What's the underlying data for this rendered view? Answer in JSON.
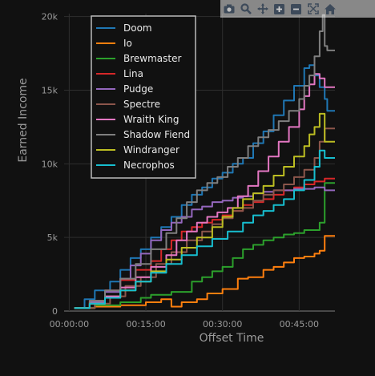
{
  "modebar": {
    "icons": [
      "camera-icon",
      "zoom-icon",
      "pan-icon",
      "zoom-in-icon",
      "zoom-out-icon",
      "autoscale-icon",
      "home-icon"
    ]
  },
  "chart_data": {
    "type": "line",
    "xlabel": "Offset Time",
    "ylabel": "Earned Income",
    "x_ticks": [
      "00:00:00",
      "00:15:00",
      "00:30:00",
      "00:45:00"
    ],
    "x_tick_minutes": [
      0,
      15,
      30,
      45
    ],
    "xlim_minutes": [
      -1,
      52
    ],
    "y_ticks": [
      "0",
      "5k",
      "10k",
      "15k",
      "20k"
    ],
    "y_tick_values": [
      0,
      5000,
      10000,
      15000,
      20000
    ],
    "ylim": [
      0,
      20200
    ],
    "grid": true,
    "legend_position": "top-left",
    "series": [
      {
        "name": "Doom",
        "color": "#1f77b4",
        "points": [
          [
            1,
            200
          ],
          [
            3,
            800
          ],
          [
            5,
            1400
          ],
          [
            8,
            2000
          ],
          [
            10,
            2800
          ],
          [
            12,
            3600
          ],
          [
            14,
            4200
          ],
          [
            16,
            5000
          ],
          [
            18,
            5700
          ],
          [
            20,
            6400
          ],
          [
            22,
            7200
          ],
          [
            24,
            7900
          ],
          [
            26,
            8400
          ],
          [
            28,
            9000
          ],
          [
            30,
            9400
          ],
          [
            32,
            10000
          ],
          [
            34,
            10400
          ],
          [
            36,
            11400
          ],
          [
            38,
            12200
          ],
          [
            40,
            13300
          ],
          [
            42,
            14300
          ],
          [
            44,
            15300
          ],
          [
            46,
            16500
          ],
          [
            47,
            16700
          ],
          [
            48,
            16000
          ],
          [
            49,
            15200
          ],
          [
            50,
            14400
          ],
          [
            50.5,
            13600
          ],
          [
            52,
            13600
          ]
        ]
      },
      {
        "name": "Io",
        "color": "#ff7f0e",
        "points": [
          [
            1,
            200
          ],
          [
            5,
            300
          ],
          [
            10,
            400
          ],
          [
            15,
            600
          ],
          [
            18,
            800
          ],
          [
            20,
            300
          ],
          [
            22,
            600
          ],
          [
            25,
            800
          ],
          [
            27,
            1200
          ],
          [
            30,
            1500
          ],
          [
            33,
            2200
          ],
          [
            35,
            2300
          ],
          [
            38,
            2800
          ],
          [
            40,
            3000
          ],
          [
            42,
            3300
          ],
          [
            44,
            3600
          ],
          [
            46,
            3700
          ],
          [
            48,
            3900
          ],
          [
            49,
            4100
          ],
          [
            50,
            5100
          ],
          [
            52,
            5100
          ]
        ]
      },
      {
        "name": "Brewmaster",
        "color": "#2ca02c",
        "points": [
          [
            1,
            200
          ],
          [
            5,
            400
          ],
          [
            10,
            600
          ],
          [
            14,
            900
          ],
          [
            16,
            1100
          ],
          [
            20,
            1300
          ],
          [
            24,
            2000
          ],
          [
            26,
            2300
          ],
          [
            28,
            2700
          ],
          [
            30,
            3000
          ],
          [
            32,
            3600
          ],
          [
            34,
            4200
          ],
          [
            36,
            4500
          ],
          [
            38,
            4800
          ],
          [
            40,
            5000
          ],
          [
            42,
            5200
          ],
          [
            44,
            5300
          ],
          [
            46,
            5500
          ],
          [
            48,
            5500
          ],
          [
            49,
            6000
          ],
          [
            50,
            8700
          ],
          [
            52,
            8700
          ]
        ]
      },
      {
        "name": "Lina",
        "color": "#d62728",
        "points": [
          [
            1,
            200
          ],
          [
            4,
            700
          ],
          [
            7,
            1400
          ],
          [
            10,
            2100
          ],
          [
            13,
            2800
          ],
          [
            16,
            3400
          ],
          [
            18,
            4200
          ],
          [
            20,
            4800
          ],
          [
            22,
            5400
          ],
          [
            24,
            5700
          ],
          [
            26,
            6000
          ],
          [
            28,
            6200
          ],
          [
            30,
            6500
          ],
          [
            32,
            6800
          ],
          [
            34,
            7200
          ],
          [
            36,
            7400
          ],
          [
            38,
            7600
          ],
          [
            40,
            7900
          ],
          [
            42,
            8200
          ],
          [
            44,
            8400
          ],
          [
            46,
            8600
          ],
          [
            48,
            8800
          ],
          [
            50,
            9000
          ],
          [
            52,
            9000
          ]
        ]
      },
      {
        "name": "Pudge",
        "color": "#9467bd",
        "points": [
          [
            1,
            200
          ],
          [
            4,
            600
          ],
          [
            7,
            1300
          ],
          [
            10,
            2200
          ],
          [
            12,
            3100
          ],
          [
            14,
            3900
          ],
          [
            16,
            4800
          ],
          [
            18,
            5500
          ],
          [
            20,
            6000
          ],
          [
            22,
            6400
          ],
          [
            24,
            6900
          ],
          [
            26,
            7100
          ],
          [
            28,
            7400
          ],
          [
            30,
            7500
          ],
          [
            32,
            7700
          ],
          [
            34,
            7800
          ],
          [
            36,
            8000
          ],
          [
            38,
            8100
          ],
          [
            40,
            8200
          ],
          [
            42,
            8200
          ],
          [
            44,
            8300
          ],
          [
            46,
            8300
          ],
          [
            48,
            8400
          ],
          [
            50,
            8200
          ],
          [
            52,
            8200
          ]
        ]
      },
      {
        "name": "Spectre",
        "color": "#8c564b",
        "points": [
          [
            1,
            200
          ],
          [
            5,
            500
          ],
          [
            8,
            1000
          ],
          [
            11,
            1700
          ],
          [
            14,
            2300
          ],
          [
            17,
            3200
          ],
          [
            20,
            4000
          ],
          [
            23,
            4800
          ],
          [
            26,
            5400
          ],
          [
            28,
            5900
          ],
          [
            30,
            6300
          ],
          [
            32,
            6800
          ],
          [
            34,
            7000
          ],
          [
            36,
            7500
          ],
          [
            38,
            7900
          ],
          [
            40,
            8200
          ],
          [
            42,
            8600
          ],
          [
            44,
            9100
          ],
          [
            46,
            9600
          ],
          [
            48,
            10400
          ],
          [
            49,
            11500
          ],
          [
            50,
            12400
          ],
          [
            52,
            12400
          ]
        ]
      },
      {
        "name": "Wraith King",
        "color": "#e377c2",
        "points": [
          [
            1,
            200
          ],
          [
            4,
            500
          ],
          [
            7,
            1000
          ],
          [
            10,
            1600
          ],
          [
            13,
            2300
          ],
          [
            16,
            3000
          ],
          [
            19,
            3800
          ],
          [
            21,
            4800
          ],
          [
            23,
            5400
          ],
          [
            25,
            6000
          ],
          [
            27,
            6400
          ],
          [
            29,
            6700
          ],
          [
            31,
            7000
          ],
          [
            33,
            7800
          ],
          [
            35,
            8500
          ],
          [
            37,
            9500
          ],
          [
            39,
            10500
          ],
          [
            41,
            11500
          ],
          [
            43,
            12500
          ],
          [
            45,
            13700
          ],
          [
            46,
            14600
          ],
          [
            47,
            15400
          ],
          [
            48,
            16100
          ],
          [
            49,
            15800
          ],
          [
            50,
            15200
          ],
          [
            52,
            15200
          ]
        ]
      },
      {
        "name": "Shadow Fiend",
        "color": "#7f7f7f",
        "points": [
          [
            1,
            200
          ],
          [
            4,
            700
          ],
          [
            7,
            1400
          ],
          [
            10,
            2200
          ],
          [
            13,
            3200
          ],
          [
            16,
            4200
          ],
          [
            19,
            5300
          ],
          [
            21,
            6300
          ],
          [
            23,
            7400
          ],
          [
            25,
            8200
          ],
          [
            27,
            8700
          ],
          [
            29,
            9100
          ],
          [
            31,
            9800
          ],
          [
            33,
            10400
          ],
          [
            35,
            11200
          ],
          [
            37,
            11800
          ],
          [
            39,
            12300
          ],
          [
            41,
            12900
          ],
          [
            43,
            13600
          ],
          [
            45,
            14400
          ],
          [
            46,
            15300
          ],
          [
            47,
            16000
          ],
          [
            48,
            17300
          ],
          [
            49,
            19000
          ],
          [
            49.6,
            20100
          ],
          [
            50,
            18000
          ],
          [
            50.5,
            17700
          ],
          [
            52,
            17700
          ]
        ]
      },
      {
        "name": "Windranger",
        "color": "#bcbd22",
        "points": [
          [
            1,
            200
          ],
          [
            4,
            500
          ],
          [
            7,
            900
          ],
          [
            10,
            1400
          ],
          [
            13,
            2000
          ],
          [
            16,
            2700
          ],
          [
            19,
            3500
          ],
          [
            22,
            4300
          ],
          [
            25,
            5000
          ],
          [
            28,
            5700
          ],
          [
            30,
            6400
          ],
          [
            32,
            7000
          ],
          [
            34,
            7600
          ],
          [
            36,
            8000
          ],
          [
            38,
            8500
          ],
          [
            40,
            9200
          ],
          [
            42,
            9800
          ],
          [
            44,
            10500
          ],
          [
            46,
            11200
          ],
          [
            47,
            12000
          ],
          [
            48,
            12500
          ],
          [
            49,
            13400
          ],
          [
            50,
            11500
          ],
          [
            52,
            11500
          ]
        ]
      },
      {
        "name": "Necrophos",
        "color": "#17becf",
        "points": [
          [
            1,
            200
          ],
          [
            4,
            500
          ],
          [
            7,
            900
          ],
          [
            10,
            1400
          ],
          [
            13,
            2000
          ],
          [
            16,
            2600
          ],
          [
            19,
            3200
          ],
          [
            22,
            3800
          ],
          [
            25,
            4400
          ],
          [
            28,
            4900
          ],
          [
            31,
            5400
          ],
          [
            34,
            6000
          ],
          [
            36,
            6500
          ],
          [
            38,
            6800
          ],
          [
            40,
            7200
          ],
          [
            42,
            7600
          ],
          [
            44,
            8200
          ],
          [
            46,
            8900
          ],
          [
            48,
            9800
          ],
          [
            49,
            10900
          ],
          [
            50,
            10400
          ],
          [
            52,
            10400
          ]
        ]
      }
    ]
  }
}
